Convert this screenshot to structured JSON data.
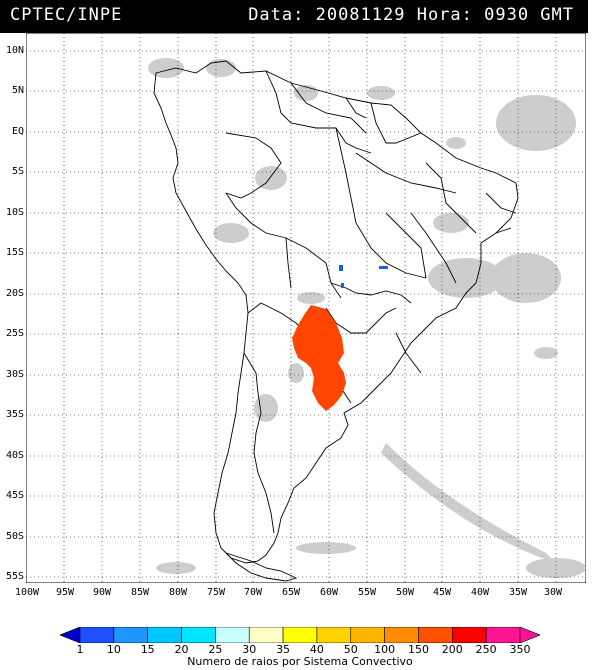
{
  "header": {
    "agency": "CPTEC/INPE",
    "datetime": "Data: 20081129 Hora: 0930 GMT"
  },
  "map": {
    "lat_labels": [
      "10N",
      "5N",
      "EQ",
      "5S",
      "10S",
      "15S",
      "20S",
      "25S",
      "30S",
      "35S",
      "40S",
      "45S",
      "50S",
      "55S"
    ],
    "lon_labels": [
      "100W",
      "95W",
      "90W",
      "85W",
      "80W",
      "75W",
      "70W",
      "65W",
      "60W",
      "55W",
      "50W",
      "45W",
      "40W",
      "35W",
      "30W"
    ],
    "lat_range": [
      -56,
      12
    ],
    "lon_range": [
      -100,
      -26
    ],
    "cloud_color": "#c8c8c8",
    "coast_color": "#000000",
    "grid_style": "dotted",
    "convective_systems": [
      {
        "color": "#ff4500",
        "label": "paraguay-argentina-system"
      },
      {
        "color": "#1464e6",
        "label": "small-system"
      }
    ]
  },
  "colorbar": {
    "ticks": [
      "1",
      "10",
      "15",
      "20",
      "25",
      "30",
      "35",
      "40",
      "50",
      "100",
      "150",
      "200",
      "250",
      "350"
    ],
    "colors": [
      "#0000c8",
      "#1e50ff",
      "#1e96ff",
      "#00c8ff",
      "#00e6ff",
      "#c8ffff",
      "#ffffc8",
      "#ffff00",
      "#ffd200",
      "#ffb400",
      "#ff8c00",
      "#ff5000",
      "#ff0000",
      "#ff1493"
    ],
    "title": "Numero de raios por Sistema Convectivo"
  }
}
